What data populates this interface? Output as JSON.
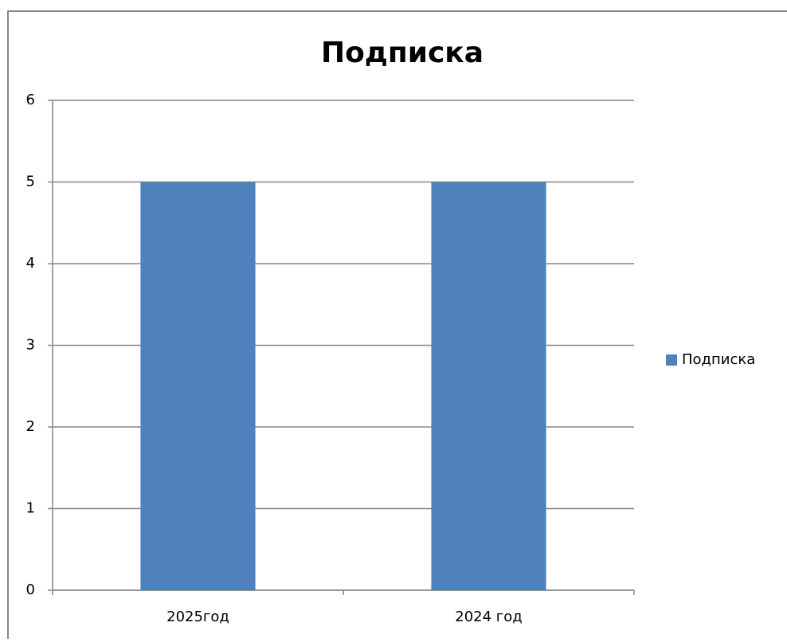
{
  "chart_data": {
    "type": "bar",
    "title": "Подписка",
    "categories": [
      "2025год",
      "2024 год"
    ],
    "series": [
      {
        "name": "Подписка",
        "color": "#4f81bd",
        "values": [
          5,
          5
        ]
      }
    ],
    "ylim": [
      0,
      6
    ],
    "yticks": [
      0,
      1,
      2,
      3,
      4,
      5,
      6
    ],
    "grid": true,
    "legend": "right"
  }
}
